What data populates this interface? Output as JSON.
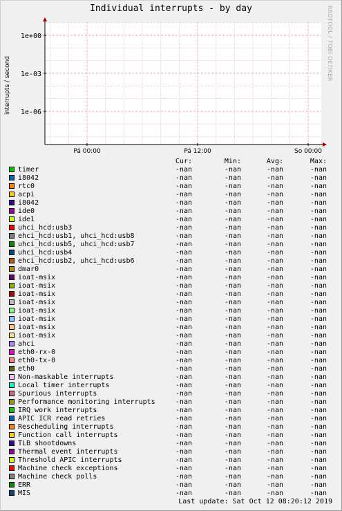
{
  "title": "Individual interrupts - by day",
  "watermark": "RRDTOOL / TOBI OETIKER",
  "chart_data": {
    "type": "line",
    "title": "Individual interrupts - by day",
    "ylabel": "interrupts / second",
    "yscale": "log",
    "y_ticks": [
      "1e-06",
      "1e-03",
      "1e+00"
    ],
    "x_ticks": [
      "Pá 00:00",
      "Pá 12:00",
      "So 00:00"
    ],
    "grid": true,
    "series": []
  },
  "legend_header": [
    "Cur:",
    "Min:",
    "Avg:",
    "Max:"
  ],
  "legend": [
    {
      "name": "timer",
      "color": "#00cc00",
      "cur": "-nan",
      "min": "-nan",
      "avg": "-nan",
      "max": "-nan"
    },
    {
      "name": "i8042",
      "color": "#0066b3",
      "cur": "-nan",
      "min": "-nan",
      "avg": "-nan",
      "max": "-nan"
    },
    {
      "name": "rtc0",
      "color": "#ff8000",
      "cur": "-nan",
      "min": "-nan",
      "avg": "-nan",
      "max": "-nan"
    },
    {
      "name": "acpi",
      "color": "#ffcc00",
      "cur": "-nan",
      "min": "-nan",
      "avg": "-nan",
      "max": "-nan"
    },
    {
      "name": "i8042",
      "color": "#330099",
      "cur": "-nan",
      "min": "-nan",
      "avg": "-nan",
      "max": "-nan"
    },
    {
      "name": "ide0",
      "color": "#990099",
      "cur": "-nan",
      "min": "-nan",
      "avg": "-nan",
      "max": "-nan"
    },
    {
      "name": "ide1",
      "color": "#ccff00",
      "cur": "-nan",
      "min": "-nan",
      "avg": "-nan",
      "max": "-nan"
    },
    {
      "name": "uhci_hcd:usb3",
      "color": "#ff0000",
      "cur": "-nan",
      "min": "-nan",
      "avg": "-nan",
      "max": "-nan"
    },
    {
      "name": "ehci_hcd:usb1, uhci_hcd:usb8",
      "color": "#808080",
      "cur": "-nan",
      "min": "-nan",
      "avg": "-nan",
      "max": "-nan"
    },
    {
      "name": "uhci_hcd:usb5, uhci_hcd:usb7",
      "color": "#008f00",
      "cur": "-nan",
      "min": "-nan",
      "avg": "-nan",
      "max": "-nan"
    },
    {
      "name": "uhci_hcd:usb4",
      "color": "#00487d",
      "cur": "-nan",
      "min": "-nan",
      "avg": "-nan",
      "max": "-nan"
    },
    {
      "name": "ehci_hcd:usb2, uhci_hcd:usb6",
      "color": "#b35a00",
      "cur": "-nan",
      "min": "-nan",
      "avg": "-nan",
      "max": "-nan"
    },
    {
      "name": "dmar0",
      "color": "#b38f00",
      "cur": "-nan",
      "min": "-nan",
      "avg": "-nan",
      "max": "-nan"
    },
    {
      "name": "ioat-msix",
      "color": "#6b006b",
      "cur": "-nan",
      "min": "-nan",
      "avg": "-nan",
      "max": "-nan"
    },
    {
      "name": "ioat-msix",
      "color": "#8fb300",
      "cur": "-nan",
      "min": "-nan",
      "avg": "-nan",
      "max": "-nan"
    },
    {
      "name": "ioat-msix",
      "color": "#b30000",
      "cur": "-nan",
      "min": "-nan",
      "avg": "-nan",
      "max": "-nan"
    },
    {
      "name": "ioat-msix",
      "color": "#bebebe",
      "cur": "-nan",
      "min": "-nan",
      "avg": "-nan",
      "max": "-nan"
    },
    {
      "name": "ioat-msix",
      "color": "#80ff80",
      "cur": "-nan",
      "min": "-nan",
      "avg": "-nan",
      "max": "-nan"
    },
    {
      "name": "ioat-msix",
      "color": "#80c9ff",
      "cur": "-nan",
      "min": "-nan",
      "avg": "-nan",
      "max": "-nan"
    },
    {
      "name": "ioat-msix",
      "color": "#ffc080",
      "cur": "-nan",
      "min": "-nan",
      "avg": "-nan",
      "max": "-nan"
    },
    {
      "name": "ioat-msix",
      "color": "#ffe680",
      "cur": "-nan",
      "min": "-nan",
      "avg": "-nan",
      "max": "-nan"
    },
    {
      "name": "ahci",
      "color": "#aa80ff",
      "cur": "-nan",
      "min": "-nan",
      "avg": "-nan",
      "max": "-nan"
    },
    {
      "name": "eth0-rx-0",
      "color": "#ee00cc",
      "cur": "-nan",
      "min": "-nan",
      "avg": "-nan",
      "max": "-nan"
    },
    {
      "name": "eth0-tx-0",
      "color": "#ff8080",
      "cur": "-nan",
      "min": "-nan",
      "avg": "-nan",
      "max": "-nan"
    },
    {
      "name": "eth0",
      "color": "#666600",
      "cur": "-nan",
      "min": "-nan",
      "avg": "-nan",
      "max": "-nan"
    },
    {
      "name": "Non-maskable interrupts",
      "color": "#ffbfff",
      "cur": "-nan",
      "min": "-nan",
      "avg": "-nan",
      "max": "-nan"
    },
    {
      "name": "Local timer interrupts",
      "color": "#00ffcc",
      "cur": "-nan",
      "min": "-nan",
      "avg": "-nan",
      "max": "-nan"
    },
    {
      "name": "Spurious interrupts",
      "color": "#cc6699",
      "cur": "-nan",
      "min": "-nan",
      "avg": "-nan",
      "max": "-nan"
    },
    {
      "name": "Performance monitoring interrupts",
      "color": "#999900",
      "cur": "-nan",
      "min": "-nan",
      "avg": "-nan",
      "max": "-nan"
    },
    {
      "name": "IRQ work interrupts",
      "color": "#00cc00",
      "cur": "-nan",
      "min": "-nan",
      "avg": "-nan",
      "max": "-nan"
    },
    {
      "name": "APIC ICR read retries",
      "color": "#0066b3",
      "cur": "-nan",
      "min": "-nan",
      "avg": "-nan",
      "max": "-nan"
    },
    {
      "name": "Rescheduling interrupts",
      "color": "#ff8000",
      "cur": "-nan",
      "min": "-nan",
      "avg": "-nan",
      "max": "-nan"
    },
    {
      "name": "Function call interrupts",
      "color": "#ffcc00",
      "cur": "-nan",
      "min": "-nan",
      "avg": "-nan",
      "max": "-nan"
    },
    {
      "name": "TLB shootdowns",
      "color": "#330099",
      "cur": "-nan",
      "min": "-nan",
      "avg": "-nan",
      "max": "-nan"
    },
    {
      "name": "Thermal event interrupts",
      "color": "#990099",
      "cur": "-nan",
      "min": "-nan",
      "avg": "-nan",
      "max": "-nan"
    },
    {
      "name": "Threshold APIC interrupts",
      "color": "#ccff00",
      "cur": "-nan",
      "min": "-nan",
      "avg": "-nan",
      "max": "-nan"
    },
    {
      "name": "Machine check exceptions",
      "color": "#ff0000",
      "cur": "-nan",
      "min": "-nan",
      "avg": "-nan",
      "max": "-nan"
    },
    {
      "name": "Machine check polls",
      "color": "#808080",
      "cur": "-nan",
      "min": "-nan",
      "avg": "-nan",
      "max": "-nan"
    },
    {
      "name": "ERR",
      "color": "#008f00",
      "cur": "-nan",
      "min": "-nan",
      "avg": "-nan",
      "max": "-nan"
    },
    {
      "name": "MIS",
      "color": "#00487d",
      "cur": "-nan",
      "min": "-nan",
      "avg": "-nan",
      "max": "-nan"
    }
  ],
  "last_update": "Last update:  Sat Oct 12 08:20:12 2019"
}
